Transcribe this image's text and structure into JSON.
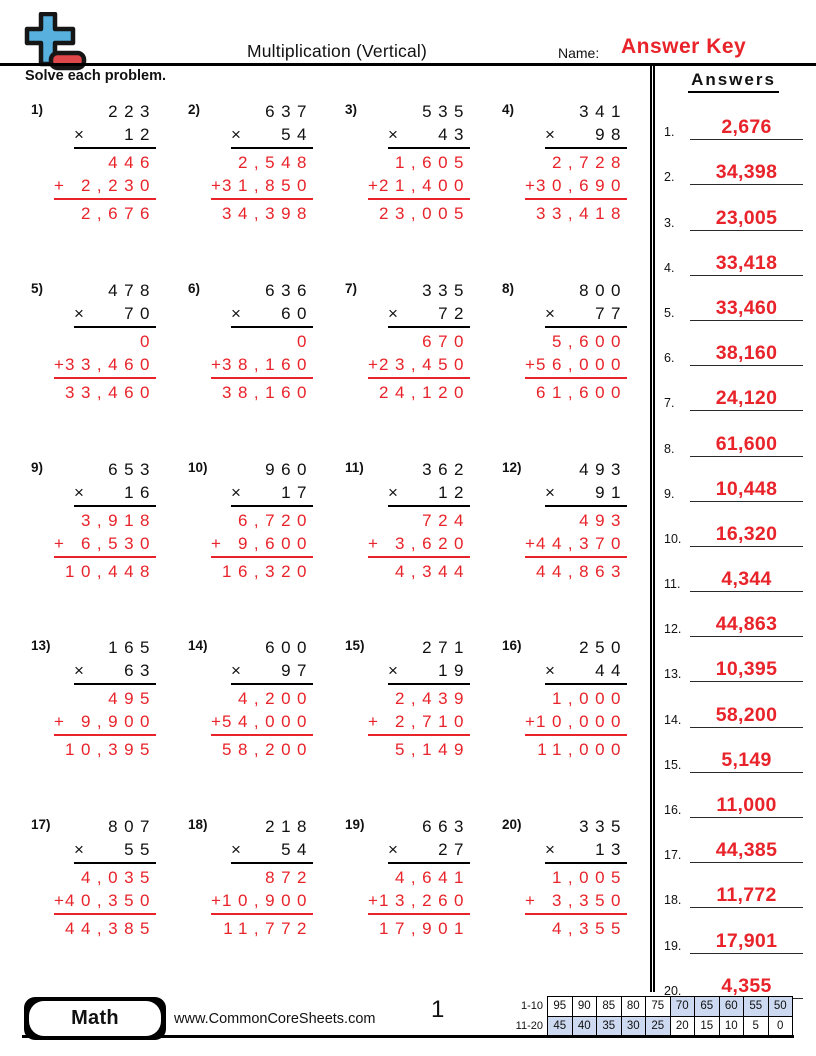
{
  "header": {
    "title": "Multiplication (Vertical)",
    "name_label": "Name:",
    "answer_key": "Answer Key",
    "instruction": "Solve each problem."
  },
  "signs": {
    "times": "×",
    "plus": "+"
  },
  "problems": [
    {
      "num": "1)",
      "multiplicand": "223",
      "multiplier": "12",
      "partial1": "446",
      "partial2": "2,230",
      "product": "2,676"
    },
    {
      "num": "2)",
      "multiplicand": "637",
      "multiplier": "54",
      "partial1": "2,548",
      "partial2": "31,850",
      "product": "34,398"
    },
    {
      "num": "3)",
      "multiplicand": "535",
      "multiplier": "43",
      "partial1": "1,605",
      "partial2": "21,400",
      "product": "23,005"
    },
    {
      "num": "4)",
      "multiplicand": "341",
      "multiplier": "98",
      "partial1": "2,728",
      "partial2": "30,690",
      "product": "33,418"
    },
    {
      "num": "5)",
      "multiplicand": "478",
      "multiplier": "70",
      "partial1": "0",
      "partial2": "33,460",
      "product": "33,460"
    },
    {
      "num": "6)",
      "multiplicand": "636",
      "multiplier": "60",
      "partial1": "0",
      "partial2": "38,160",
      "product": "38,160"
    },
    {
      "num": "7)",
      "multiplicand": "335",
      "multiplier": "72",
      "partial1": "670",
      "partial2": "23,450",
      "product": "24,120"
    },
    {
      "num": "8)",
      "multiplicand": "800",
      "multiplier": "77",
      "partial1": "5,600",
      "partial2": "56,000",
      "product": "61,600"
    },
    {
      "num": "9)",
      "multiplicand": "653",
      "multiplier": "16",
      "partial1": "3,918",
      "partial2": "6,530",
      "product": "10,448"
    },
    {
      "num": "10)",
      "multiplicand": "960",
      "multiplier": "17",
      "partial1": "6,720",
      "partial2": "9,600",
      "product": "16,320"
    },
    {
      "num": "11)",
      "multiplicand": "362",
      "multiplier": "12",
      "partial1": "724",
      "partial2": "3,620",
      "product": "4,344"
    },
    {
      "num": "12)",
      "multiplicand": "493",
      "multiplier": "91",
      "partial1": "493",
      "partial2": "44,370",
      "product": "44,863"
    },
    {
      "num": "13)",
      "multiplicand": "165",
      "multiplier": "63",
      "partial1": "495",
      "partial2": "9,900",
      "product": "10,395"
    },
    {
      "num": "14)",
      "multiplicand": "600",
      "multiplier": "97",
      "partial1": "4,200",
      "partial2": "54,000",
      "product": "58,200"
    },
    {
      "num": "15)",
      "multiplicand": "271",
      "multiplier": "19",
      "partial1": "2,439",
      "partial2": "2,710",
      "product": "5,149"
    },
    {
      "num": "16)",
      "multiplicand": "250",
      "multiplier": "44",
      "partial1": "1,000",
      "partial2": "10,000",
      "product": "11,000"
    },
    {
      "num": "17)",
      "multiplicand": "807",
      "multiplier": "55",
      "partial1": "4,035",
      "partial2": "40,350",
      "product": "44,385"
    },
    {
      "num": "18)",
      "multiplicand": "218",
      "multiplier": "54",
      "partial1": "872",
      "partial2": "10,900",
      "product": "11,772"
    },
    {
      "num": "19)",
      "multiplicand": "663",
      "multiplier": "27",
      "partial1": "4,641",
      "partial2": "13,260",
      "product": "17,901"
    },
    {
      "num": "20)",
      "multiplicand": "335",
      "multiplier": "13",
      "partial1": "1,005",
      "partial2": "3,350",
      "product": "4,355"
    }
  ],
  "answers_panel": {
    "title": "Answers",
    "items": [
      {
        "num": "1.",
        "value": "2,676"
      },
      {
        "num": "2.",
        "value": "34,398"
      },
      {
        "num": "3.",
        "value": "23,005"
      },
      {
        "num": "4.",
        "value": "33,418"
      },
      {
        "num": "5.",
        "value": "33,460"
      },
      {
        "num": "6.",
        "value": "38,160"
      },
      {
        "num": "7.",
        "value": "24,120"
      },
      {
        "num": "8.",
        "value": "61,600"
      },
      {
        "num": "9.",
        "value": "10,448"
      },
      {
        "num": "10.",
        "value": "16,320"
      },
      {
        "num": "11.",
        "value": "4,344"
      },
      {
        "num": "12.",
        "value": "44,863"
      },
      {
        "num": "13.",
        "value": "10,395"
      },
      {
        "num": "14.",
        "value": "58,200"
      },
      {
        "num": "15.",
        "value": "5,149"
      },
      {
        "num": "16.",
        "value": "11,000"
      },
      {
        "num": "17.",
        "value": "44,385"
      },
      {
        "num": "18.",
        "value": "11,772"
      },
      {
        "num": "19.",
        "value": "17,901"
      },
      {
        "num": "20.",
        "value": "4,355"
      }
    ]
  },
  "footer": {
    "subject": "Math",
    "website": "www.CommonCoreSheets.com",
    "page": "1",
    "grade_table": {
      "rows": [
        {
          "label": "1-10",
          "values": [
            "95",
            "90",
            "85",
            "80",
            "75",
            "70",
            "65",
            "60",
            "55",
            "50"
          ],
          "highlight": [
            false,
            false,
            false,
            false,
            false,
            true,
            true,
            true,
            true,
            true
          ]
        },
        {
          "label": "11-20",
          "values": [
            "45",
            "40",
            "35",
            "30",
            "25",
            "20",
            "15",
            "10",
            "5",
            "0"
          ],
          "highlight": [
            true,
            true,
            true,
            true,
            true,
            false,
            false,
            false,
            false,
            false
          ]
        }
      ]
    }
  },
  "colors": {
    "red": "#E8232A",
    "highlight_blue": "#CCD9F0",
    "logo_blue": "#57B0DD",
    "logo_red": "#E0474B"
  }
}
